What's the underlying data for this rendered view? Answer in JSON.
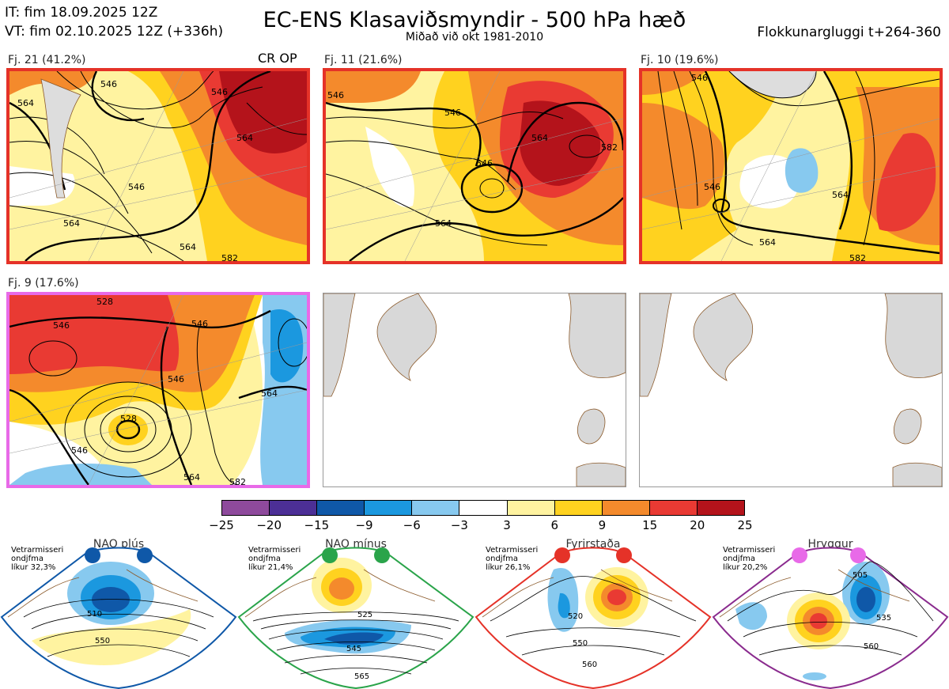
{
  "header": {
    "it_line": "IT: fim 18.09.2025 12Z",
    "vt_line": "VT: fim 02.10.2025 12Z  (+336h)",
    "title": "EC-ENS Klasaviðsmyndir - 500 hPa hæð",
    "subtitle": "Miðað við okt 1981-2010",
    "window": "Flokkunargluggi t+264-360"
  },
  "panels": [
    {
      "label": "Fj. 21 (41.2%)",
      "tag": "CR OP",
      "border": "#e53228",
      "contours": [
        "546",
        "564",
        "546",
        "564",
        "546",
        "564",
        "564",
        "582"
      ]
    },
    {
      "label": "Fj. 11 (21.6%)",
      "tag": "",
      "border": "#e53228",
      "contours": [
        "546",
        "546",
        "564",
        "546",
        "564",
        "582"
      ]
    },
    {
      "label": "Fj. 10 (19.6%)",
      "tag": "",
      "border": "#e53228",
      "contours": [
        "546",
        "546",
        "564",
        "564",
        "582"
      ]
    },
    {
      "label": "Fj. 9 (17.6%)",
      "tag": "",
      "border": "#e86ae8",
      "contours": [
        "528",
        "546",
        "546",
        "546",
        "528",
        "546",
        "564",
        "564",
        "582"
      ]
    }
  ],
  "colorbar": {
    "colors": [
      "#8e4a9c",
      "#4c2f96",
      "#0f58a8",
      "#1b98df",
      "#87c9ef",
      "#ffffff",
      "#fff3a0",
      "#ffd21f",
      "#f48a2c",
      "#e93a33",
      "#b4131b"
    ],
    "ticks": [
      "−25",
      "−20",
      "−15",
      "−9",
      "−6",
      "−3",
      "3",
      "6",
      "9",
      "15",
      "20",
      "25"
    ]
  },
  "regimes": [
    {
      "title": "NAO plús",
      "note1": "Vetrarmisseri",
      "note2": "ondjfma",
      "note3": "líkur 32,3%",
      "color": "#0f58a8",
      "contours": [
        "510",
        "550"
      ]
    },
    {
      "title": "NAO mínus",
      "note1": "Vetrarmisseri",
      "note2": "ondjfma",
      "note3": "líkur 21,4%",
      "color": "#2aa44a",
      "contours": [
        "525",
        "545",
        "565"
      ]
    },
    {
      "title": "Fyrirstaða",
      "note1": "Vetrarmisseri",
      "note2": "ondjfma",
      "note3": "líkur 26,1%",
      "color": "#e53228",
      "contours": [
        "520",
        "550",
        "560"
      ]
    },
    {
      "title": "Hryggur",
      "note1": "Vetrarmisseri",
      "note2": "ondjfma",
      "note3": "líkur 20,2%",
      "color": "#8a2b8e",
      "contours": [
        "505",
        "535",
        "560"
      ]
    }
  ]
}
